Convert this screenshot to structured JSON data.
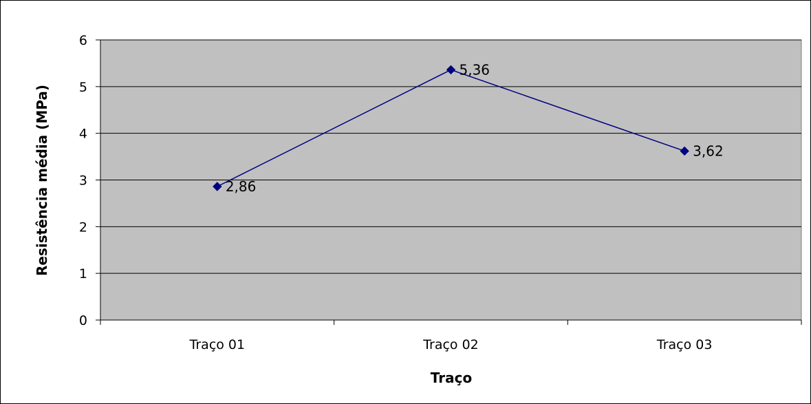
{
  "chart_data": {
    "type": "line",
    "categories": [
      "Traço 01",
      "Traço 02",
      "Traço 03"
    ],
    "series": [
      {
        "values": [
          2.86,
          5.36,
          3.62
        ],
        "data_labels": [
          "2,86",
          "5,36",
          "3,62"
        ],
        "color": "#000080",
        "marker": "diamond"
      }
    ],
    "xlabel": "Traço",
    "ylabel": "Resistência média (MPa)",
    "ylim": [
      0,
      6
    ],
    "yticks": [
      0,
      1,
      2,
      3,
      4,
      5,
      6
    ],
    "ytick_labels": [
      "0",
      "1",
      "2",
      "3",
      "4",
      "5",
      "6"
    ],
    "grid": "horizontal",
    "legend": "none",
    "plot_background": "#c0c0c0",
    "gridline_color": "#000000"
  }
}
